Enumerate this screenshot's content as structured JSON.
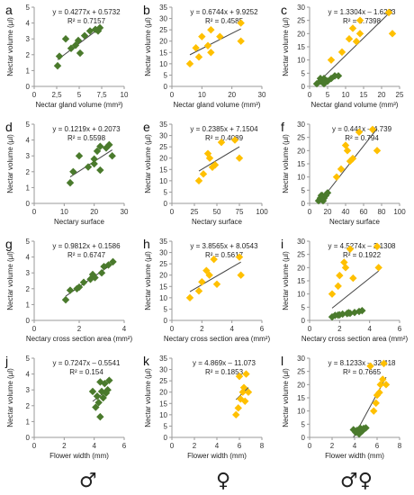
{
  "colors": {
    "male": "#4a7a2c",
    "female": "#ffc000",
    "both_female": "#ffc000",
    "both_male": "#4a7a2c"
  },
  "symbols": {
    "male": "♂",
    "female": "♀",
    "both": "♂♀"
  },
  "chart_data": [
    {
      "letter": "a",
      "type": "scatter",
      "equation": "y = 0.4277x + 0.5732",
      "r2": "R² = 0.7157",
      "xlabel": "Nectar gland volume (mm³)",
      "ylabel": "Nectar volume (µl)",
      "xlim": [
        0,
        10
      ],
      "ylim": [
        0,
        5
      ],
      "xticks": [
        "0",
        "2,5",
        "5",
        "7,5",
        "10"
      ],
      "yticks": [
        0,
        1,
        2,
        3,
        4,
        5
      ],
      "fit": [
        0.5732,
        0.4277
      ],
      "series": [
        {
          "color": "male",
          "points": [
            [
              2.6,
              1.3
            ],
            [
              2.8,
              1.9
            ],
            [
              3.5,
              3.0
            ],
            [
              4.1,
              2.4
            ],
            [
              4.6,
              2.6
            ],
            [
              4.9,
              2.9
            ],
            [
              5.1,
              2.1
            ],
            [
              5.6,
              3.2
            ],
            [
              6.2,
              3.5
            ],
            [
              6.8,
              3.6
            ],
            [
              7.1,
              3.5
            ],
            [
              7.3,
              3.7
            ]
          ]
        }
      ]
    },
    {
      "letter": "b",
      "type": "scatter",
      "equation": "y = 0.6744x + 9.9252",
      "r2": "R² = 0.4585",
      "xlabel": "Nectar gland volume (mm³)",
      "ylabel": "Nectar volume (µl)",
      "xlim": [
        0,
        30
      ],
      "ylim": [
        0,
        35
      ],
      "xticks": [
        "0",
        "10",
        "20",
        "30"
      ],
      "yticks": [
        0,
        5,
        10,
        15,
        20,
        25,
        30,
        35
      ],
      "fit": [
        9.9252,
        0.6744
      ],
      "series": [
        {
          "color": "female",
          "points": [
            [
              6,
              10
            ],
            [
              8,
              17
            ],
            [
              9,
              13
            ],
            [
              10,
              22
            ],
            [
              12,
              18
            ],
            [
              13,
              25
            ],
            [
              13,
              15
            ],
            [
              16,
              22
            ],
            [
              23,
              28
            ],
            [
              23,
              20
            ]
          ]
        }
      ]
    },
    {
      "letter": "c",
      "type": "scatter",
      "equation": "y = 1.3304x – 1.6223",
      "r2": "R² = 0.7398",
      "xlabel": "Nectar gland volume (mm³)",
      "ylabel": "Nectar volume (µl)",
      "xlim": [
        0,
        25
      ],
      "ylim": [
        0,
        30
      ],
      "xticks": [
        "0",
        "5",
        "10",
        "15",
        "20",
        "25"
      ],
      "yticks": [
        0,
        5,
        10,
        15,
        20,
        25,
        30
      ],
      "fit": [
        -1.6223,
        1.3304
      ],
      "series": [
        {
          "color": "both_male",
          "points": [
            [
              2,
              1
            ],
            [
              3,
              2
            ],
            [
              4,
              3
            ],
            [
              5,
              2
            ],
            [
              6,
              3
            ],
            [
              7,
              4
            ],
            [
              8,
              4
            ],
            [
              4,
              1
            ],
            [
              3,
              3
            ]
          ]
        },
        {
          "color": "both_female",
          "points": [
            [
              6,
              10
            ],
            [
              9,
              13
            ],
            [
              11,
              18
            ],
            [
              12,
              22
            ],
            [
              13,
              17
            ],
            [
              14,
              25
            ],
            [
              14,
              20
            ],
            [
              22,
              28
            ],
            [
              23,
              20
            ]
          ]
        }
      ]
    },
    {
      "letter": "d",
      "type": "scatter",
      "equation": "y = 0.1219x + 0.2073",
      "r2": "R² = 0.5598",
      "xlabel": "Nectary surface",
      "ylabel": "Nectar volume (µl)",
      "xlim": [
        0,
        30
      ],
      "ylim": [
        0,
        5
      ],
      "xticks": [
        "0",
        "10",
        "20",
        "30"
      ],
      "yticks": [
        0,
        1,
        2,
        3,
        4,
        5
      ],
      "fit": [
        0.2073,
        0.1219
      ],
      "series": [
        {
          "color": "male",
          "points": [
            [
              12,
              1.3
            ],
            [
              13,
              2.0
            ],
            [
              15,
              3.0
            ],
            [
              18,
              2.3
            ],
            [
              20,
              2.8
            ],
            [
              20,
              2.5
            ],
            [
              21,
              3.3
            ],
            [
              22,
              3.6
            ],
            [
              22,
              2.1
            ],
            [
              24,
              3.5
            ],
            [
              25,
              3.7
            ],
            [
              26,
              3.0
            ]
          ]
        }
      ]
    },
    {
      "letter": "e",
      "type": "scatter",
      "equation": "y = 0.2385x + 7.1504",
      "r2": "R² = 0.4089",
      "xlabel": "Nectary surface",
      "ylabel": "Nectar volume (µl)",
      "xlim": [
        0,
        100
      ],
      "ylim": [
        0,
        35
      ],
      "xticks": [
        "0",
        "25",
        "50",
        "75",
        "100"
      ],
      "yticks": [
        0,
        5,
        10,
        15,
        20,
        25,
        30,
        35
      ],
      "fit": [
        7.1504,
        0.2385
      ],
      "series": [
        {
          "color": "female",
          "points": [
            [
              30,
              10
            ],
            [
              35,
              13
            ],
            [
              40,
              22
            ],
            [
              42,
              20
            ],
            [
              45,
              16
            ],
            [
              48,
              17
            ],
            [
              55,
              27
            ],
            [
              70,
              28
            ],
            [
              75,
              20
            ]
          ]
        }
      ]
    },
    {
      "letter": "f",
      "type": "scatter",
      "equation": "y = 0.441x – 4.739",
      "r2": "R² = 0.794",
      "xlabel": "Nectary surface",
      "ylabel": "Nectar volume (µl)",
      "xlim": [
        0,
        100
      ],
      "ylim": [
        0,
        30
      ],
      "xticks": [
        "0",
        "20",
        "40",
        "60",
        "80",
        "100"
      ],
      "yticks": [
        0,
        5,
        10,
        15,
        20,
        25,
        30
      ],
      "fit": [
        -4.739,
        0.441
      ],
      "series": [
        {
          "color": "both_male",
          "points": [
            [
              10,
              1
            ],
            [
              12,
              2
            ],
            [
              14,
              3
            ],
            [
              16,
              2
            ],
            [
              18,
              3
            ],
            [
              20,
              4
            ],
            [
              15,
              1
            ],
            [
              13,
              3
            ]
          ]
        },
        {
          "color": "both_female",
          "points": [
            [
              30,
              10
            ],
            [
              35,
              13
            ],
            [
              40,
              22
            ],
            [
              42,
              20
            ],
            [
              45,
              16
            ],
            [
              48,
              17
            ],
            [
              55,
              27
            ],
            [
              70,
              28
            ],
            [
              75,
              20
            ]
          ]
        }
      ]
    },
    {
      "letter": "g",
      "type": "scatter",
      "equation": "y = 0.9812x + 0.1586",
      "r2": "R² = 0.6747",
      "xlabel": "Nectary cross section area (mm²)",
      "ylabel": "Nectar volume (µl)",
      "xlim": [
        0,
        4
      ],
      "ylim": [
        0,
        5
      ],
      "xticks": [
        "0",
        "2",
        "4"
      ],
      "yticks": [
        0,
        1,
        2,
        3,
        4,
        5
      ],
      "fit": [
        0.1586,
        0.9812
      ],
      "series": [
        {
          "color": "male",
          "points": [
            [
              1.4,
              1.3
            ],
            [
              1.6,
              1.9
            ],
            [
              1.9,
              2.0
            ],
            [
              2.0,
              2.1
            ],
            [
              2.2,
              2.4
            ],
            [
              2.5,
              2.6
            ],
            [
              2.6,
              2.9
            ],
            [
              2.7,
              2.7
            ],
            [
              3.0,
              3.0
            ],
            [
              3.1,
              3.4
            ],
            [
              3.3,
              3.5
            ],
            [
              3.5,
              3.7
            ]
          ]
        }
      ]
    },
    {
      "letter": "h",
      "type": "scatter",
      "equation": "y = 3.8565x + 8.0543",
      "r2": "R² = 0.5617",
      "xlabel": "Nectary cross section area (mm²)",
      "ylabel": "Nectar volume (µl)",
      "xlim": [
        0,
        6
      ],
      "ylim": [
        0,
        35
      ],
      "xticks": [
        "0",
        "2",
        "4",
        "6"
      ],
      "yticks": [
        0,
        5,
        10,
        15,
        20,
        25,
        30,
        35
      ],
      "fit": [
        8.0543,
        3.8565
      ],
      "series": [
        {
          "color": "female",
          "points": [
            [
              1.2,
              10
            ],
            [
              1.8,
              13
            ],
            [
              2.0,
              17
            ],
            [
              2.3,
              22
            ],
            [
              2.5,
              20
            ],
            [
              2.8,
              27
            ],
            [
              3.0,
              16
            ],
            [
              4.5,
              28
            ],
            [
              4.6,
              20
            ]
          ]
        }
      ]
    },
    {
      "letter": "i",
      "type": "scatter",
      "equation": "y = 4.5274x – 2.1308",
      "r2": "R² = 0.1922",
      "xlabel": "Nectary cross section area (mm²)",
      "ylabel": "Nectar volume (µl)",
      "xlim": [
        0,
        6
      ],
      "ylim": [
        0,
        30
      ],
      "xticks": [
        "0",
        "2",
        "4",
        "6"
      ],
      "yticks": [
        0,
        5,
        10,
        15,
        20,
        25,
        30
      ],
      "fit": [
        -2.1308,
        4.5274
      ],
      "series": [
        {
          "color": "both_male",
          "points": [
            [
              1.5,
              1.3
            ],
            [
              1.7,
              1.9
            ],
            [
              1.9,
              2.0
            ],
            [
              2.0,
              2.1
            ],
            [
              2.2,
              2.4
            ],
            [
              2.5,
              2.6
            ],
            [
              2.6,
              2.9
            ],
            [
              2.7,
              2.7
            ],
            [
              3.0,
              3.0
            ],
            [
              3.3,
              3.4
            ],
            [
              3.5,
              3.7
            ]
          ]
        },
        {
          "color": "both_female",
          "points": [
            [
              1.5,
              10
            ],
            [
              1.9,
              13
            ],
            [
              2.0,
              17
            ],
            [
              2.3,
              22
            ],
            [
              2.4,
              20
            ],
            [
              2.7,
              27
            ],
            [
              2.9,
              16
            ],
            [
              4.5,
              28
            ],
            [
              4.6,
              20
            ]
          ]
        }
      ]
    },
    {
      "letter": "j",
      "type": "scatter",
      "equation": "y = 0.7247x – 0.5541",
      "r2": "R² = 0.154",
      "xlabel": "Flower width (mm)",
      "ylabel": "Nectar volume (µl)",
      "xlim": [
        0,
        6
      ],
      "ylim": [
        0,
        5
      ],
      "xticks": [
        "0",
        "2",
        "4",
        "6"
      ],
      "yticks": [
        0,
        1,
        2,
        3,
        4,
        5
      ],
      "fit": [
        -0.5541,
        0.7247
      ],
      "series": [
        {
          "color": "male",
          "points": [
            [
              3.9,
              2.9
            ],
            [
              4.1,
              1.9
            ],
            [
              4.2,
              2.6
            ],
            [
              4.3,
              2.2
            ],
            [
              4.4,
              1.3
            ],
            [
              4.4,
              3.5
            ],
            [
              4.5,
              2.9
            ],
            [
              4.6,
              2.5
            ],
            [
              4.7,
              3.4
            ],
            [
              4.8,
              2.8
            ],
            [
              5.0,
              3.6
            ],
            [
              4.9,
              3.0
            ]
          ]
        }
      ]
    },
    {
      "letter": "k",
      "type": "scatter",
      "equation": "y = 4.869x – 11.073",
      "r2": "R² = 0.1853",
      "xlabel": "Flower width (mm)",
      "ylabel": "Nectar volume (µl)",
      "xlim": [
        0,
        8
      ],
      "ylim": [
        0,
        35
      ],
      "xticks": [
        "0",
        "2",
        "4",
        "6",
        "8"
      ],
      "yticks": [
        0,
        5,
        10,
        15,
        20,
        25,
        30,
        35
      ],
      "fit": [
        -11.073,
        4.869
      ],
      "series": [
        {
          "color": "female",
          "points": [
            [
              5.7,
              10
            ],
            [
              5.9,
              13
            ],
            [
              6.0,
              27
            ],
            [
              6.1,
              17
            ],
            [
              6.3,
              20
            ],
            [
              6.4,
              22
            ],
            [
              6.5,
              16
            ],
            [
              6.6,
              28
            ],
            [
              6.8,
              20
            ]
          ]
        }
      ]
    },
    {
      "letter": "l",
      "type": "scatter",
      "equation": "y = 8.1233x – 32.418",
      "r2": "R² = 0.7665",
      "xlabel": "Flower width (mm)",
      "ylabel": "Nectar volume (µl)",
      "xlim": [
        0,
        8
      ],
      "ylim": [
        0,
        30
      ],
      "xticks": [
        "0",
        "2",
        "4",
        "6",
        "8"
      ],
      "yticks": [
        0,
        5,
        10,
        15,
        20,
        25,
        30
      ],
      "fit": [
        -32.418,
        8.1233
      ],
      "series": [
        {
          "color": "both_male",
          "points": [
            [
              3.9,
              2.9
            ],
            [
              4.1,
              1.9
            ],
            [
              4.2,
              2.6
            ],
            [
              4.3,
              2.2
            ],
            [
              4.4,
              1.3
            ],
            [
              4.5,
              3.5
            ],
            [
              4.6,
              2.9
            ],
            [
              4.7,
              2.5
            ],
            [
              4.8,
              3.4
            ],
            [
              5.0,
              3.6
            ]
          ]
        },
        {
          "color": "both_female",
          "points": [
            [
              5.4,
              27
            ],
            [
              5.7,
              10
            ],
            [
              5.9,
              13
            ],
            [
              6.0,
              16
            ],
            [
              6.2,
              17
            ],
            [
              6.3,
              20
            ],
            [
              6.5,
              22
            ],
            [
              6.6,
              28
            ],
            [
              6.8,
              20
            ]
          ]
        }
      ]
    }
  ]
}
